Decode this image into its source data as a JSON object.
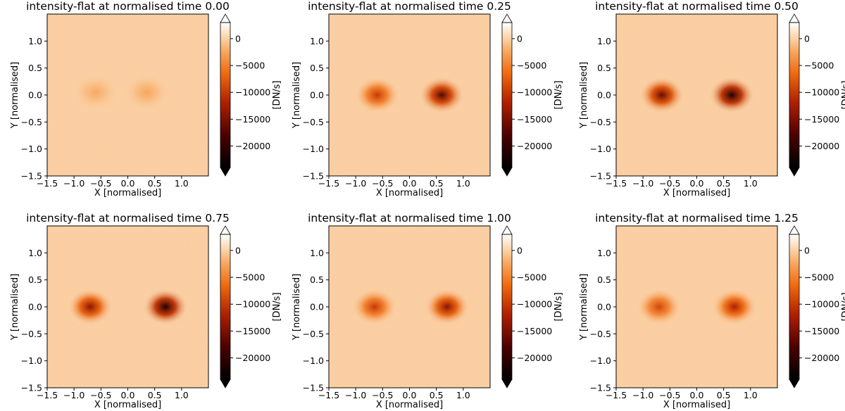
{
  "chart_data": [
    {
      "type": "heatmap",
      "title": "intensity-flat at normalised time 0.00",
      "time": 0.0,
      "xlabel": "X [normalised]",
      "ylabel": "Y [normalised]",
      "xlim": [
        -1.5,
        1.5
      ],
      "ylim": [
        -1.5,
        1.5
      ],
      "xticks": [
        "−1.5",
        "−1.0",
        "−0.5",
        "0.0",
        "0.5",
        "1.0"
      ],
      "yticks": [
        "−1.5",
        "−1.0",
        "−0.5",
        "0.0",
        "0.5",
        "1.0"
      ],
      "colorbar": {
        "label": "[DN/s]",
        "ticks": [
          "0",
          "−5000",
          "−10000",
          "−15000",
          "−20000"
        ],
        "range": [
          -24000,
          3000
        ],
        "extend": "both"
      },
      "blobs": [
        {
          "x": -0.6,
          "y": 0.05,
          "depth": -2200
        },
        {
          "x": 0.35,
          "y": 0.05,
          "depth": -2400
        }
      ]
    },
    {
      "type": "heatmap",
      "title": "intensity-flat at normalised time 0.25",
      "time": 0.25,
      "xlabel": "X [normalised]",
      "ylabel": "Y [normalised]",
      "xlim": [
        -1.5,
        1.5
      ],
      "ylim": [
        -1.5,
        1.5
      ],
      "xticks": [
        "−1.5",
        "−1.0",
        "−0.5",
        "0.0",
        "0.5",
        "1.0"
      ],
      "yticks": [
        "−1.5",
        "−1.0",
        "−0.5",
        "0.0",
        "0.5",
        "1.0"
      ],
      "colorbar": {
        "label": "[DN/s]",
        "ticks": [
          "0",
          "−5000",
          "−10000",
          "−15000",
          "−20000"
        ],
        "range": [
          -24000,
          3000
        ],
        "extend": "both"
      },
      "blobs": [
        {
          "x": -0.6,
          "y": 0.0,
          "depth": -10000
        },
        {
          "x": 0.6,
          "y": 0.0,
          "depth": -17000
        }
      ]
    },
    {
      "type": "heatmap",
      "title": "intensity-flat at normalised time 0.50",
      "time": 0.5,
      "xlabel": "X [normalised]",
      "ylabel": "Y [normalised]",
      "xlim": [
        -1.5,
        1.5
      ],
      "ylim": [
        -1.5,
        1.5
      ],
      "xticks": [
        "−1.5",
        "−1.0",
        "−0.5",
        "0.0",
        "0.5",
        "1.0"
      ],
      "yticks": [
        "−1.5",
        "−1.0",
        "−0.5",
        "0.0",
        "0.5",
        "1.0"
      ],
      "colorbar": {
        "label": "[DN/s]",
        "ticks": [
          "0",
          "−5000",
          "−10000",
          "−15000",
          "−20000"
        ],
        "range": [
          -24000,
          3000
        ],
        "extend": "both"
      },
      "blobs": [
        {
          "x": -0.65,
          "y": 0.0,
          "depth": -16000
        },
        {
          "x": 0.65,
          "y": 0.0,
          "depth": -21000
        }
      ]
    },
    {
      "type": "heatmap",
      "title": "intensity-flat at normalised time 0.75",
      "time": 0.75,
      "xlabel": "X [normalised]",
      "ylabel": "Y [normalised]",
      "xlim": [
        -1.5,
        1.5
      ],
      "ylim": [
        -1.5,
        1.5
      ],
      "xticks": [
        "−1.5",
        "−1.0",
        "−0.5",
        "0.0",
        "0.5",
        "1.0"
      ],
      "yticks": [
        "−1.5",
        "−1.0",
        "−0.5",
        "0.0",
        "0.5",
        "1.0"
      ],
      "colorbar": {
        "label": "[DN/s]",
        "ticks": [
          "0",
          "−5000",
          "−10000",
          "−15000",
          "−20000"
        ],
        "range": [
          -24000,
          3000
        ],
        "extend": "both"
      },
      "blobs": [
        {
          "x": -0.7,
          "y": 0.0,
          "depth": -14000
        },
        {
          "x": 0.7,
          "y": 0.0,
          "depth": -21000
        }
      ]
    },
    {
      "type": "heatmap",
      "title": "intensity-flat at normalised time 1.00",
      "time": 1.0,
      "xlabel": "X [normalised]",
      "ylabel": "Y [normalised]",
      "xlim": [
        -1.5,
        1.5
      ],
      "ylim": [
        -1.5,
        1.5
      ],
      "xticks": [
        "−1.5",
        "−1.0",
        "−0.5",
        "0.0",
        "0.5",
        "1.0"
      ],
      "yticks": [
        "−1.5",
        "−1.0",
        "−0.5",
        "0.0",
        "0.5",
        "1.0"
      ],
      "colorbar": {
        "label": "[DN/s]",
        "ticks": [
          "0",
          "−5000",
          "−10000",
          "−15000",
          "−20000"
        ],
        "range": [
          -24000,
          3000
        ],
        "extend": "both"
      },
      "blobs": [
        {
          "x": -0.65,
          "y": 0.0,
          "depth": -10000
        },
        {
          "x": 0.7,
          "y": 0.0,
          "depth": -14000
        }
      ]
    },
    {
      "type": "heatmap",
      "title": "intensity-flat at normalised time 1.25",
      "time": 1.25,
      "xlabel": "X [normalised]",
      "ylabel": "Y [normalised]",
      "xlim": [
        -1.5,
        1.5
      ],
      "ylim": [
        -1.5,
        1.5
      ],
      "xticks": [
        "−1.5",
        "−1.0",
        "−0.5",
        "0.0",
        "0.5",
        "1.0"
      ],
      "yticks": [
        "−1.5",
        "−1.0",
        "−0.5",
        "0.0",
        "0.5",
        "1.0"
      ],
      "colorbar": {
        "label": "[DN/s]",
        "ticks": [
          "0",
          "−5000",
          "−10000",
          "−15000",
          "−20000"
        ],
        "range": [
          -24000,
          3000
        ],
        "extend": "both"
      },
      "blobs": [
        {
          "x": -0.7,
          "y": 0.0,
          "depth": -9000
        },
        {
          "x": 0.7,
          "y": 0.0,
          "depth": -12000
        }
      ]
    }
  ]
}
